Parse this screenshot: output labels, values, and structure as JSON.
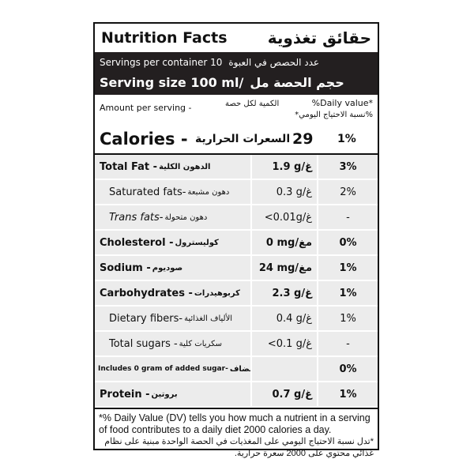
{
  "title": {
    "en": "Nutrition Facts",
    "ar": "حقائق تغذوية"
  },
  "servings": {
    "en": "Servings per container 10",
    "ar": "عدد الحصص في العبوة"
  },
  "serving_size": {
    "en": "Serving size 100 ml/",
    "ar": "حجم الحصة  مل"
  },
  "amount": {
    "en": "Amount per serving -",
    "ar": "الكمية لكل حصة",
    "dv_en": "%Daily value*",
    "dv_ar": "*نسبة الاحتياج اليومي%"
  },
  "calories": {
    "en": "Calories -",
    "ar": "السعرات الحرارية",
    "value": "29",
    "pct": "1%"
  },
  "rows": [
    {
      "en": "Total Fat -",
      "ar": "الدهون الكلية",
      "value": "1.9 g/غ",
      "pct": "3%"
    },
    {
      "en": "Saturated fats-",
      "ar": "دهون مشبعة",
      "value": "0.3 g/غ",
      "pct": "2%"
    },
    {
      "en": "Trans fats-",
      "ar": "دهون متحولة",
      "value": "<0.01g/غ",
      "pct": "-"
    },
    {
      "en": "Cholesterol -",
      "ar": "كوليسترول",
      "value": "0 mg/مغ",
      "pct": "0%"
    },
    {
      "en": "Sodium -",
      "ar": "صوديوم",
      "value": "24 mg/مغ",
      "pct": "1%"
    },
    {
      "en": "Carbohydrates -",
      "ar": "كربوهيدرات",
      "value": "2.3 g/غ",
      "pct": "1%"
    },
    {
      "en": "Dietary fibers-",
      "ar": "الألياف الغذائية",
      "value": "0.4 g/غ",
      "pct": "1%"
    },
    {
      "en": "Total sugars -",
      "ar": "سكريات كلية",
      "value": "<0.1 g/غ",
      "pct": "-"
    },
    {
      "en": "Includes 0 gram of added sugar-",
      "ar": "يتضمن ٠ غرام سكر مضاف",
      "value": "",
      "pct": "0%"
    },
    {
      "en": "Protein -",
      "ar": "بروتين",
      "value": "0.7 g/غ",
      "pct": "1%"
    }
  ],
  "footnote": {
    "en": "*% Daily Value (DV) tells you how much a nutrient in a serving of food contributes to a daily diet 2000 calories a day.",
    "ar": "*تدل نسبة الاحتياج اليومي على المغذيات في الحصة الواحدة مبنية على نظام غذائي محتوي على 2000 سعرة حرارية."
  }
}
